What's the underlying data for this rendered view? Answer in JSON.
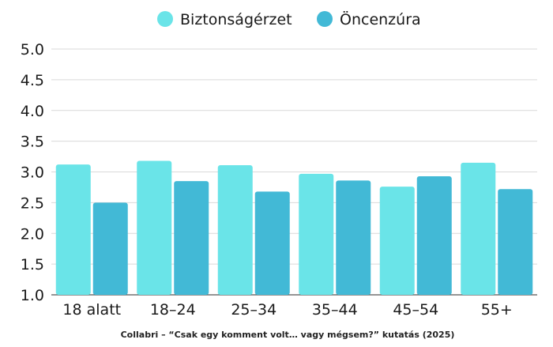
{
  "chart_data": {
    "type": "bar",
    "categories": [
      "18 alatt",
      "18–24",
      "25–34",
      "35–44",
      "45–54",
      "55+"
    ],
    "series": [
      {
        "name": "Biztonságérzet",
        "color": "#6ae4e8",
        "values": [
          3.12,
          3.18,
          3.11,
          2.97,
          2.76,
          3.15
        ]
      },
      {
        "name": "Öncenzúra",
        "color": "#42b9d6",
        "values": [
          2.5,
          2.85,
          2.68,
          2.86,
          2.93,
          2.72
        ]
      }
    ],
    "ylim": [
      1.0,
      5.0
    ],
    "yticks": [
      "1.0",
      "1.5",
      "2.0",
      "2.5",
      "3.0",
      "3.5",
      "4.0",
      "4.5",
      "5.0"
    ],
    "grid": true,
    "legend_position": "top-center",
    "xlabel": "",
    "ylabel": ""
  },
  "source_note": "Collabri – “Csak egy komment volt… vagy mégsem?” kutatás (2025)"
}
